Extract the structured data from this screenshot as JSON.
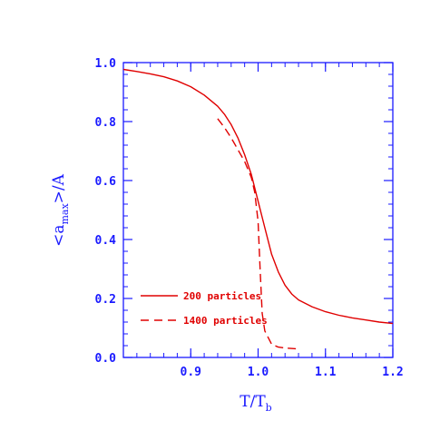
{
  "chart_data": {
    "type": "line",
    "xlim": [
      0.8,
      1.2
    ],
    "ylim": [
      0.0,
      1.0
    ],
    "x_ticks": [
      0.9,
      1.0,
      1.1,
      1.2
    ],
    "x_tick_labels": [
      "0.9",
      "1.0",
      "1.1",
      "1.2"
    ],
    "y_ticks": [
      0.0,
      0.2,
      0.4,
      0.6,
      0.8,
      1.0
    ],
    "y_tick_labels": [
      "0.0",
      "0.2",
      "0.4",
      "0.6",
      "0.8",
      "1.0"
    ],
    "xlabel": {
      "main": "T/T",
      "sub": "b"
    },
    "ylabel": {
      "pre": "<a",
      "sub": "max",
      "post": ">/A"
    },
    "grid": false,
    "legend_position": "bottom-left",
    "series": [
      {
        "name": "200 particles",
        "style": "solid",
        "color": "#e00000",
        "x": [
          0.8,
          0.82,
          0.84,
          0.86,
          0.88,
          0.9,
          0.92,
          0.94,
          0.95,
          0.96,
          0.97,
          0.98,
          0.99,
          1.0,
          1.01,
          1.02,
          1.03,
          1.04,
          1.05,
          1.06,
          1.08,
          1.1,
          1.12,
          1.14,
          1.16,
          1.18,
          1.2
        ],
        "y": [
          0.977,
          0.97,
          0.962,
          0.952,
          0.938,
          0.918,
          0.89,
          0.852,
          0.825,
          0.79,
          0.745,
          0.688,
          0.62,
          0.53,
          0.44,
          0.35,
          0.29,
          0.245,
          0.215,
          0.195,
          0.172,
          0.155,
          0.143,
          0.134,
          0.127,
          0.12,
          0.115
        ]
      },
      {
        "name": "1400 particles",
        "style": "dashed",
        "color": "#e00000",
        "x": [
          0.94,
          0.95,
          0.96,
          0.97,
          0.98,
          0.99,
          0.995,
          1.0,
          1.003,
          1.006,
          1.01,
          1.02,
          1.03,
          1.04,
          1.06
        ],
        "y": [
          0.81,
          0.78,
          0.745,
          0.705,
          0.665,
          0.61,
          0.56,
          0.46,
          0.3,
          0.15,
          0.09,
          0.045,
          0.035,
          0.032,
          0.029
        ]
      }
    ]
  }
}
